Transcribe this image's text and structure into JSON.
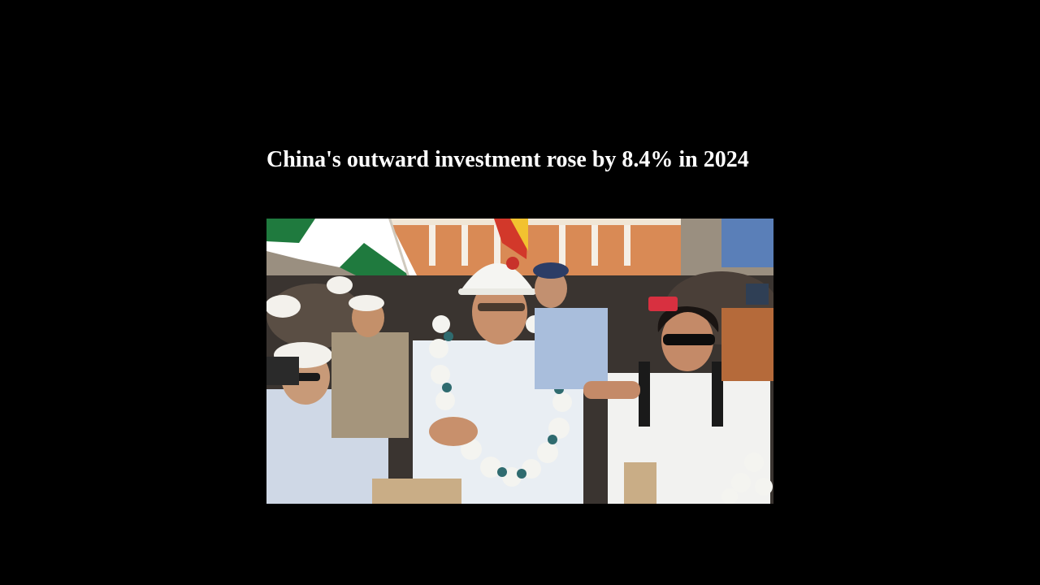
{
  "article": {
    "headline": "China's outward investment rose by 8.4% in 2024"
  },
  "photo": {
    "subject": "news-photo-crowd-garlanded-man-in-hard-hat"
  },
  "colors": {
    "page_background": "#000000",
    "headline_text": "#ffffff"
  }
}
